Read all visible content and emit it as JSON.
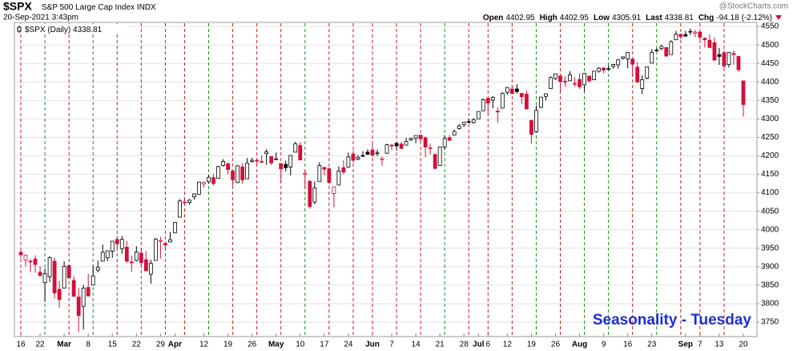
{
  "chart_data": {
    "type": "candlestick",
    "symbol": "$SPX",
    "description": "S&P 500 Large Cap Index",
    "exchange": "INDX",
    "timestamp": "20-Sep-2021 3:43pm",
    "watermark": "@StockCharts.com",
    "quote": {
      "fields": [
        {
          "label": "Open",
          "value": 4402.95
        },
        {
          "label": "High",
          "value": 4402.95
        },
        {
          "label": "Low",
          "value": 4305.91
        },
        {
          "label": "Last",
          "value": 4338.81
        },
        {
          "label": "Chg",
          "value": -94.18
        }
      ],
      "change_pct": "(-2.12%)"
    },
    "legend": "$SPX (Daily)",
    "legend_value": 4338.81,
    "annotation": "Seasonality - Tuesday",
    "annotation_color": "#1f2fd1",
    "up_color": "#000000",
    "down_color": "#d2103a",
    "marker_colors": {
      "up": "#1e8c1e",
      "down": "#d21c1c"
    },
    "grid": true,
    "x": [
      "2021-02-16",
      "2021-02-17",
      "2021-02-18",
      "2021-02-19",
      "2021-02-22",
      "2021-02-23",
      "2021-02-24",
      "2021-02-25",
      "2021-02-26",
      "2021-03-01",
      "2021-03-02",
      "2021-03-03",
      "2021-03-04",
      "2021-03-05",
      "2021-03-08",
      "2021-03-09",
      "2021-03-10",
      "2021-03-11",
      "2021-03-12",
      "2021-03-15",
      "2021-03-16",
      "2021-03-17",
      "2021-03-18",
      "2021-03-19",
      "2021-03-22",
      "2021-03-23",
      "2021-03-24",
      "2021-03-25",
      "2021-03-26",
      "2021-03-29",
      "2021-03-30",
      "2021-03-31",
      "2021-04-01",
      "2021-04-05",
      "2021-04-06",
      "2021-04-07",
      "2021-04-08",
      "2021-04-09",
      "2021-04-12",
      "2021-04-13",
      "2021-04-14",
      "2021-04-15",
      "2021-04-16",
      "2021-04-19",
      "2021-04-20",
      "2021-04-21",
      "2021-04-22",
      "2021-04-23",
      "2021-04-26",
      "2021-04-27",
      "2021-04-28",
      "2021-04-29",
      "2021-04-30",
      "2021-05-03",
      "2021-05-04",
      "2021-05-05",
      "2021-05-06",
      "2021-05-07",
      "2021-05-10",
      "2021-05-11",
      "2021-05-12",
      "2021-05-13",
      "2021-05-14",
      "2021-05-17",
      "2021-05-18",
      "2021-05-19",
      "2021-05-20",
      "2021-05-21",
      "2021-05-24",
      "2021-05-25",
      "2021-05-26",
      "2021-05-27",
      "2021-05-28",
      "2021-06-01",
      "2021-06-02",
      "2021-06-03",
      "2021-06-04",
      "2021-06-07",
      "2021-06-08",
      "2021-06-09",
      "2021-06-10",
      "2021-06-11",
      "2021-06-14",
      "2021-06-15",
      "2021-06-16",
      "2021-06-17",
      "2021-06-18",
      "2021-06-21",
      "2021-06-22",
      "2021-06-23",
      "2021-06-24",
      "2021-06-25",
      "2021-06-28",
      "2021-06-29",
      "2021-06-30",
      "2021-07-01",
      "2021-07-02",
      "2021-07-06",
      "2021-07-07",
      "2021-07-08",
      "2021-07-09",
      "2021-07-12",
      "2021-07-13",
      "2021-07-14",
      "2021-07-15",
      "2021-07-16",
      "2021-07-19",
      "2021-07-20",
      "2021-07-21",
      "2021-07-22",
      "2021-07-23",
      "2021-07-26",
      "2021-07-27",
      "2021-07-28",
      "2021-07-29",
      "2021-07-30",
      "2021-08-02",
      "2021-08-03",
      "2021-08-04",
      "2021-08-05",
      "2021-08-06",
      "2021-08-09",
      "2021-08-10",
      "2021-08-11",
      "2021-08-12",
      "2021-08-13",
      "2021-08-16",
      "2021-08-17",
      "2021-08-18",
      "2021-08-19",
      "2021-08-20",
      "2021-08-23",
      "2021-08-24",
      "2021-08-25",
      "2021-08-26",
      "2021-08-27",
      "2021-08-30",
      "2021-08-31",
      "2021-09-01",
      "2021-09-02",
      "2021-09-03",
      "2021-09-07",
      "2021-09-08",
      "2021-09-09",
      "2021-09-10",
      "2021-09-13",
      "2021-09-14",
      "2021-09-15",
      "2021-09-16",
      "2021-09-17",
      "2021-09-20"
    ],
    "open": [
      3939,
      3918,
      3915,
      3921,
      3885,
      3857,
      3873,
      3915,
      3839,
      3842,
      3903,
      3863,
      3818,
      3793,
      3844,
      3851,
      3891,
      3915,
      3924,
      3942,
      3974,
      3949,
      3953,
      3913,
      3917,
      3937,
      3919,
      3880,
      3917,
      3969,
      3963,
      3967,
      3992,
      4034,
      4075,
      4074,
      4089,
      4096,
      4124,
      4130,
      4141,
      4139,
      4174,
      4179,
      4159,
      4128,
      4170,
      4138,
      4185,
      4188,
      4185,
      4206,
      4198,
      4191,
      4179,
      4177,
      4170,
      4210,
      4228,
      4150,
      4131,
      4075,
      4130,
      4169,
      4165,
      4098,
      4121,
      4168,
      4170,
      4205,
      4191,
      4201,
      4210,
      4216,
      4207,
      4191,
      4207,
      4229,
      4234,
      4232,
      4229,
      4243,
      4248,
      4256,
      4249,
      4220,
      4204,
      4174,
      4224,
      4249,
      4256,
      4274,
      4284,
      4293,
      4290,
      4300,
      4322,
      4356,
      4351,
      4321,
      4329,
      4372,
      4381,
      4381,
      4369,
      4367,
      4296,
      4265,
      4331,
      4361,
      4382,
      4409,
      4416,
      4402,
      4403,
      4396,
      4407,
      4392,
      4416,
      4406,
      4429,
      4438,
      4435,
      4442,
      4446,
      4464,
      4462,
      4462,
      4440,
      4382,
      4410,
      4451,
      4484,
      4490,
      4493,
      4474,
      4514,
      4529,
      4528,
      4535,
      4532,
      4535,
      4518,
      4513,
      4506,
      4474,
      4479,
      4447,
      4477,
      4469,
      4402.95
    ],
    "high": [
      3950,
      3933,
      3921,
      3931,
      3902,
      3895,
      3928,
      3925,
      3861,
      3914,
      3906,
      3874,
      3843,
      3851,
      3881,
      3903,
      3917,
      3960,
      3944,
      3970,
      3981,
      3983,
      3970,
      3930,
      3956,
      3949,
      3942,
      3919,
      3978,
      3981,
      3968,
      3994,
      4020,
      4083,
      4087,
      4083,
      4098,
      4129,
      4131,
      4149,
      4151,
      4173,
      4191,
      4180,
      4160,
      4175,
      4180,
      4194,
      4195,
      4193,
      4201,
      4218,
      4199,
      4209,
      4180,
      4187,
      4202,
      4238,
      4237,
      4162,
      4135,
      4131,
      4183,
      4170,
      4169,
      4117,
      4172,
      4188,
      4209,
      4214,
      4202,
      4213,
      4218,
      4234,
      4217,
      4198,
      4233,
      4232,
      4236,
      4238,
      4249,
      4249,
      4255,
      4257,
      4252,
      4233,
      4204,
      4225,
      4256,
      4256,
      4271,
      4286,
      4292,
      4301,
      4302,
      4320,
      4355,
      4356,
      4362,
      4331,
      4372,
      4386,
      4392,
      4394,
      4369,
      4376,
      4296,
      4336,
      4359,
      4369,
      4415,
      4422,
      4416,
      4415,
      4429,
      4413,
      4423,
      4423,
      4416,
      4429,
      4440,
      4439,
      4445,
      4449,
      4461,
      4468,
      4480,
      4462,
      4454,
      4418,
      4441,
      4489,
      4492,
      4501,
      4495,
      4513,
      4538,
      4531,
      4538,
      4545,
      4541,
      4536,
      4521,
      4529,
      4521,
      4492,
      4485,
      4481,
      4485,
      4471,
      4402.95
    ],
    "low": [
      3923,
      3901,
      3885,
      3884,
      3874,
      3805,
      3859,
      3814,
      3789,
      3842,
      3868,
      3818,
      3723,
      3730,
      3819,
      3851,
      3885,
      3915,
      3915,
      3924,
      3949,
      3935,
      3910,
      3886,
      3914,
      3901,
      3889,
      3854,
      3917,
      3922,
      3944,
      3966,
      3992,
      4034,
      4069,
      4068,
      4082,
      4095,
      4114,
      4124,
      4120,
      4139,
      4171,
      4150,
      4119,
      4126,
      4124,
      4138,
      4182,
      4176,
      4181,
      4176,
      4175,
      4188,
      4128,
      4158,
      4147,
      4210,
      4188,
      4111,
      4057,
      4069,
      4130,
      4147,
      4124,
      4061,
      4121,
      4151,
      4168,
      4182,
      4188,
      4197,
      4203,
      4197,
      4199,
      4173,
      4206,
      4215,
      4214,
      4219,
      4229,
      4240,
      4234,
      4238,
      4196,
      4203,
      4164,
      4174,
      4217,
      4241,
      4256,
      4271,
      4278,
      4287,
      4287,
      4300,
      4322,
      4314,
      4329,
      4289,
      4329,
      4365,
      4366,
      4369,
      4340,
      4326,
      4233,
      4262,
      4329,
      4350,
      4381,
      4405,
      4372,
      4387,
      4403,
      4387,
      4381,
      4374,
      4398,
      4405,
      4425,
      4423,
      4430,
      4436,
      4436,
      4460,
      4437,
      4417,
      4397,
      4367,
      4407,
      4451,
      4482,
      4486,
      4468,
      4474,
      4514,
      4515,
      4522,
      4527,
      4521,
      4513,
      4493,
      4493,
      4457,
      4446,
      4435,
      4439,
      4447,
      4427,
      4305.91
    ],
    "close": [
      3932,
      3931,
      3913,
      3906,
      3876,
      3881,
      3925,
      3829,
      3811,
      3901,
      3870,
      3820,
      3768,
      3842,
      3821,
      3875,
      3898,
      3939,
      3943,
      3969,
      3962,
      3974,
      3915,
      3913,
      3940,
      3911,
      3889,
      3909,
      3975,
      3971,
      3959,
      3973,
      4020,
      4078,
      4074,
      4080,
      4097,
      4129,
      4128,
      4142,
      4125,
      4171,
      4185,
      4163,
      4135,
      4173,
      4135,
      4180,
      4188,
      4187,
      4184,
      4211,
      4181,
      4192,
      4165,
      4168,
      4201,
      4233,
      4189,
      4153,
      4063,
      4113,
      4174,
      4164,
      4128,
      4116,
      4159,
      4156,
      4197,
      4188,
      4196,
      4201,
      4204,
      4202,
      4208,
      4192,
      4230,
      4227,
      4227,
      4220,
      4239,
      4247,
      4255,
      4246,
      4224,
      4222,
      4166,
      4224,
      4247,
      4242,
      4266,
      4281,
      4291,
      4291,
      4298,
      4320,
      4352,
      4343,
      4358,
      4320,
      4369,
      4385,
      4369,
      4374,
      4360,
      4327,
      4258,
      4323,
      4359,
      4368,
      4412,
      4422,
      4401,
      4400,
      4419,
      4395,
      4387,
      4423,
      4403,
      4429,
      4437,
      4432,
      4436,
      4447,
      4460,
      4468,
      4480,
      4448,
      4400,
      4406,
      4441,
      4480,
      4486,
      4496,
      4470,
      4509,
      4529,
      4523,
      4524,
      4537,
      4535,
      4521,
      4514,
      4493,
      4459,
      4469,
      4443,
      4480,
      4474,
      4433,
      4338.81
    ],
    "xticks": [
      {
        "value": "2021-02-16",
        "label": "16"
      },
      {
        "value": "2021-02-22",
        "label": "22"
      },
      {
        "value": "2021-03-01",
        "label": "Mar"
      },
      {
        "value": "2021-03-08",
        "label": "8"
      },
      {
        "value": "2021-03-15",
        "label": "15"
      },
      {
        "value": "2021-03-22",
        "label": "22"
      },
      {
        "value": "2021-03-29",
        "label": "29"
      },
      {
        "value": "2021-04-01",
        "label": "Apr"
      },
      {
        "value": "2021-04-12",
        "label": "12"
      },
      {
        "value": "2021-04-19",
        "label": "19"
      },
      {
        "value": "2021-04-26",
        "label": "26"
      },
      {
        "value": "2021-05-03",
        "label": "May"
      },
      {
        "value": "2021-05-10",
        "label": "10"
      },
      {
        "value": "2021-05-17",
        "label": "17"
      },
      {
        "value": "2021-05-24",
        "label": "24"
      },
      {
        "value": "2021-06-01",
        "label": "Jun"
      },
      {
        "value": "2021-06-07",
        "label": "7"
      },
      {
        "value": "2021-06-14",
        "label": "14"
      },
      {
        "value": "2021-06-21",
        "label": "21"
      },
      {
        "value": "2021-06-28",
        "label": "28"
      },
      {
        "value": "2021-07-01",
        "label": "Jul"
      },
      {
        "value": "2021-07-06",
        "label": "6"
      },
      {
        "value": "2021-07-12",
        "label": "12"
      },
      {
        "value": "2021-07-19",
        "label": "19"
      },
      {
        "value": "2021-07-26",
        "label": "26"
      },
      {
        "value": "2021-08-02",
        "label": "Aug"
      },
      {
        "value": "2021-08-09",
        "label": "9"
      },
      {
        "value": "2021-08-16",
        "label": "16"
      },
      {
        "value": "2021-08-23",
        "label": "23"
      },
      {
        "value": "2021-09-01",
        "label": "Sep"
      },
      {
        "value": "2021-09-07",
        "label": "7"
      },
      {
        "value": "2021-09-13",
        "label": "13"
      },
      {
        "value": "2021-09-20",
        "label": "20"
      }
    ],
    "ylim": [
      3711,
      4561
    ],
    "yticks": [
      3750,
      3800,
      3850,
      3900,
      3950,
      4000,
      4050,
      4100,
      4150,
      4200,
      4250,
      4300,
      4350,
      4400,
      4450,
      4500,
      4550
    ]
  }
}
